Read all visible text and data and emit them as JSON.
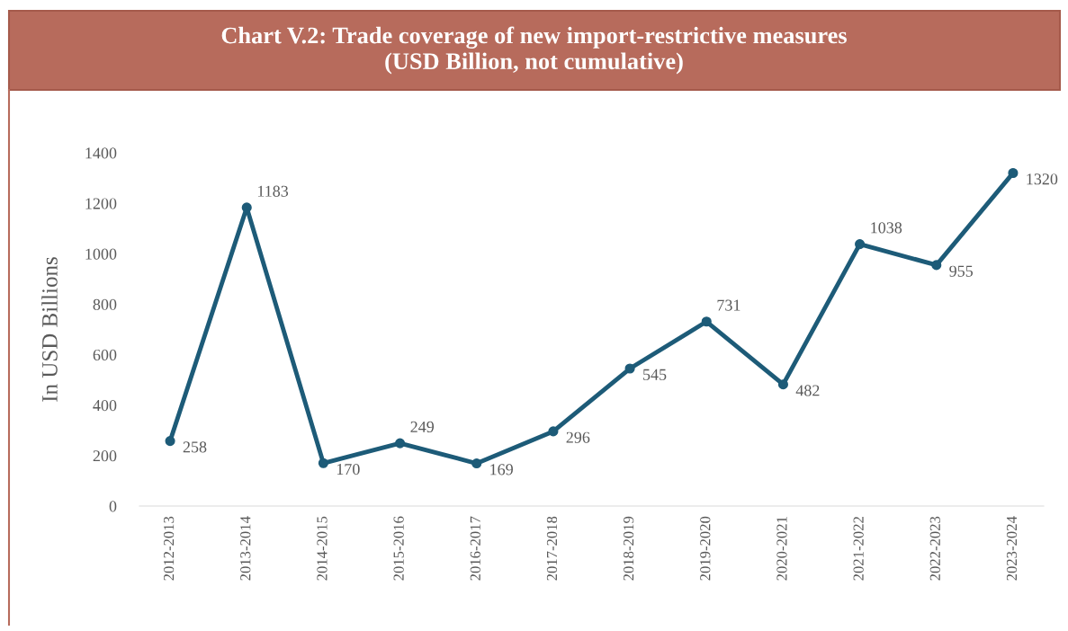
{
  "chart_data": {
    "type": "line",
    "title": "Chart V.2: Trade coverage of new import-restrictive measures\n(USD Billion, not cumulative)",
    "ylabel": "In USD Billions",
    "categories": [
      "2012-2013",
      "2013-2014",
      "2014-2015",
      "2015-2016",
      "2016-2017",
      "2017-2018",
      "2018-2019",
      "2019-2020",
      "2020-2021",
      "2021-2022",
      "2022-2023",
      "2023-2024"
    ],
    "series": [
      {
        "color": "#1d5b78",
        "values": [
          258,
          1183,
          170,
          249,
          169,
          296,
          545,
          731,
          482,
          1038,
          955,
          1320
        ]
      }
    ],
    "ylim": [
      0,
      1400
    ],
    "yticks": [
      0,
      200,
      400,
      600,
      800,
      1000,
      1200,
      1400
    ],
    "grid": false,
    "legend": false,
    "marker": "circle",
    "line_style": "solid",
    "data_labels": true
  }
}
